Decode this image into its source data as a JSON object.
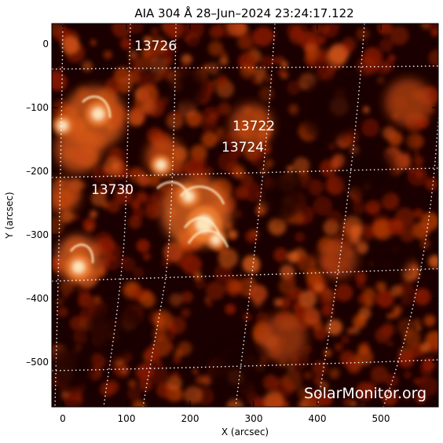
{
  "title": "AIA 304 Å 28–Jun–2024 23:24:17.122",
  "axes": {
    "xlabel": "X (arcsec)",
    "ylabel": "Y (arcsec)",
    "xticks": [
      "0",
      "100",
      "200",
      "300",
      "400",
      "500"
    ],
    "yticks": [
      "0",
      "–100",
      "–200",
      "–300",
      "–400",
      "–500"
    ]
  },
  "regions": [
    {
      "number": "13726",
      "x_arcsec": 110,
      "y_arcsec": 0
    },
    {
      "number": "13722",
      "x_arcsec": 265,
      "y_arcsec": -125
    },
    {
      "number": "13724",
      "x_arcsec": 250,
      "y_arcsec": -160
    },
    {
      "number": "13730",
      "x_arcsec": 45,
      "y_arcsec": -225
    }
  ],
  "watermark": "SolarMonitor.org",
  "colors": {
    "background": "#ffffff",
    "image_dark": "#1a0000",
    "image_mid": "#8a1a00",
    "image_bright": "#f08030",
    "image_peak": "#fff0c8",
    "grid": "#ffffff"
  }
}
